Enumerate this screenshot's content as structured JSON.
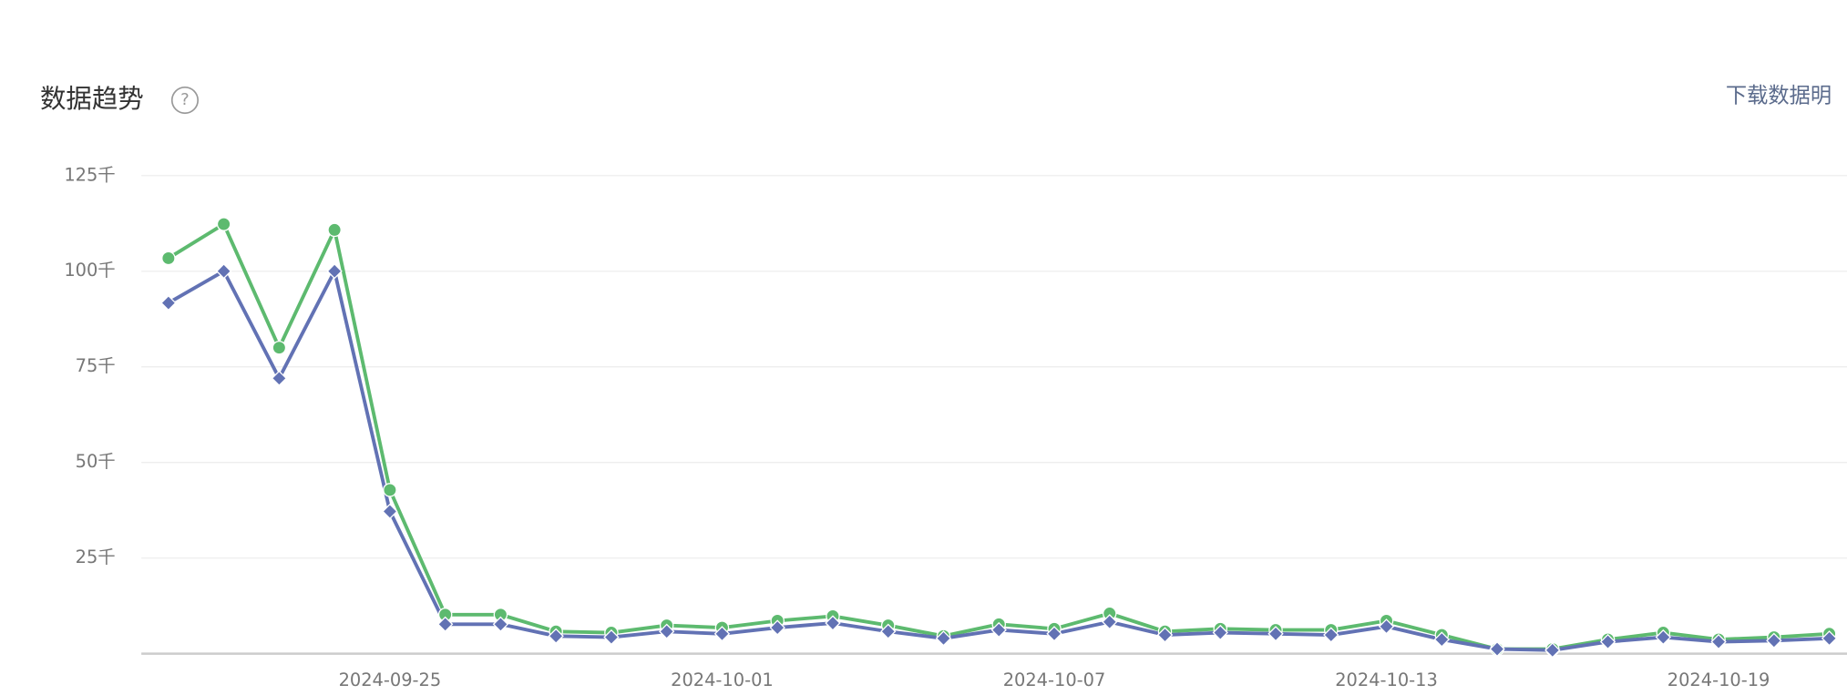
{
  "chart_data": {
    "type": "line",
    "title": "数据趋势",
    "help_icon": "?",
    "download_link": "下载数据明",
    "categories": [
      null,
      null,
      null,
      null,
      "2024-09-25",
      null,
      null,
      null,
      null,
      null,
      "2024-10-01",
      null,
      null,
      null,
      null,
      null,
      "2024-10-07",
      null,
      null,
      null,
      null,
      null,
      "2024-10-13",
      null,
      null,
      null,
      null,
      null,
      "2024-10-19",
      null,
      null
    ],
    "series": [
      {
        "color": "#5dba6f",
        "marker": "circle",
        "values": [
          103.4,
          112.3,
          80,
          110.8,
          42.8,
          10.2,
          10.2,
          5.8,
          5.5,
          7.4,
          6.8,
          8.6,
          9.8,
          7.4,
          4.6,
          7.7,
          6.5,
          10.5,
          5.8,
          6.5,
          6.2,
          6.2,
          8.6,
          4.9,
          1.2,
          1.2,
          3.7,
          5.5,
          3.7,
          4.3,
          5.2
        ]
      },
      {
        "color": "#6272b4",
        "marker": "diamond",
        "values": [
          91.7,
          100,
          72,
          100,
          37.2,
          7.7,
          7.7,
          4.6,
          4.3,
          5.8,
          5.2,
          6.8,
          8,
          5.8,
          4,
          6.2,
          5.2,
          8.3,
          4.9,
          5.5,
          5.2,
          4.9,
          7.1,
          3.7,
          1.2,
          0.9,
          3.1,
          4.3,
          3.1,
          3.4,
          4
        ]
      }
    ],
    "ylim": [
      0,
      125
    ],
    "yticks": [
      {
        "value": 25,
        "label": "25千"
      },
      {
        "value": 50,
        "label": "50千"
      },
      {
        "value": 75,
        "label": "75千"
      },
      {
        "value": 100,
        "label": "100千"
      },
      {
        "value": 125,
        "label": "125千"
      }
    ],
    "grid": true
  }
}
